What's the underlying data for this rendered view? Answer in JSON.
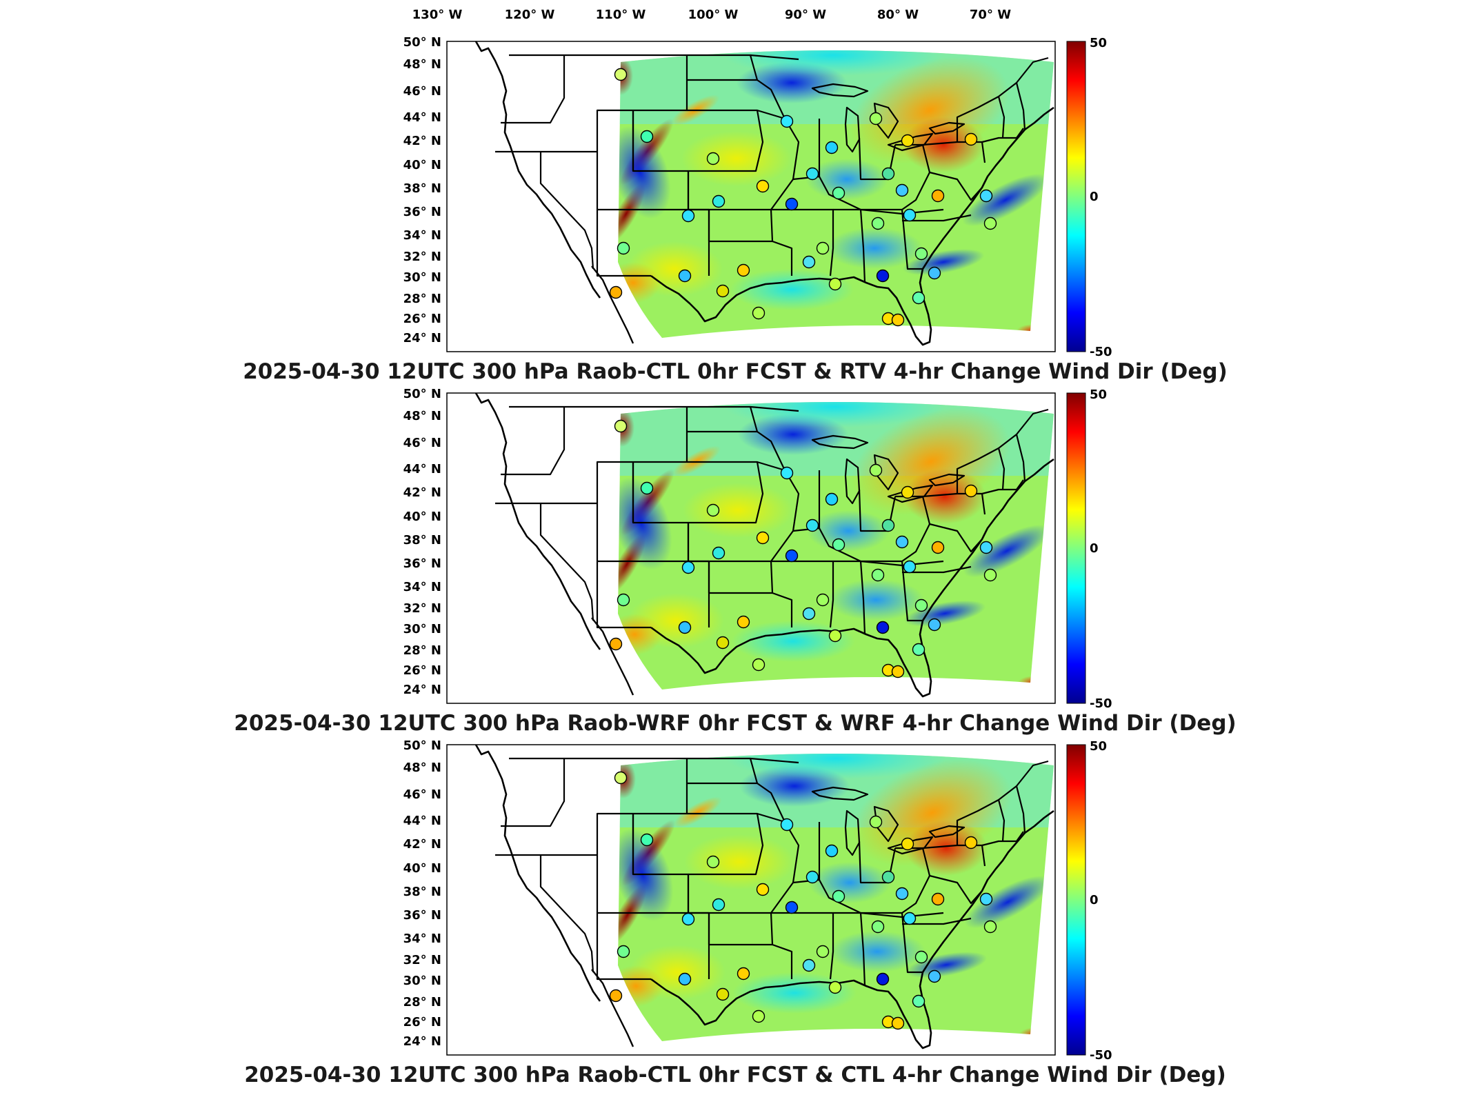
{
  "figure": {
    "lon_ticks": [
      "130° W",
      "120° W",
      "110° W",
      "100° W",
      "90° W",
      "80° W",
      "70° W"
    ],
    "lat_ticks": [
      "50° N",
      "48° N",
      "46° N",
      "44° N",
      "42° N",
      "40° N",
      "38° N",
      "36° N",
      "34° N",
      "32° N",
      "30° N",
      "28° N",
      "26° N",
      "24° N"
    ]
  },
  "colorbar": {
    "max_label": "50",
    "mid_label": "0",
    "min_label": "-50",
    "colors": [
      "#00008f",
      "#0000ff",
      "#0080ff",
      "#00ffff",
      "#80ff80",
      "#ffff00",
      "#ff8000",
      "#ff0000",
      "#800000"
    ]
  },
  "panels": [
    {
      "title": "2025-04-30 12UTC 300 hPa Raob-CTL 0hr FCST & RTV 4-hr Change Wind Dir (Deg)"
    },
    {
      "title": "2025-04-30 12UTC 300 hPa Raob-WRF 0hr FCST & WRF 4-hr Change Wind Dir (Deg)"
    },
    {
      "title": "2025-04-30 12UTC 300 hPa Raob-CTL 0hr FCST & CTL 4-hr Change Wind Dir (Deg)"
    }
  ]
}
